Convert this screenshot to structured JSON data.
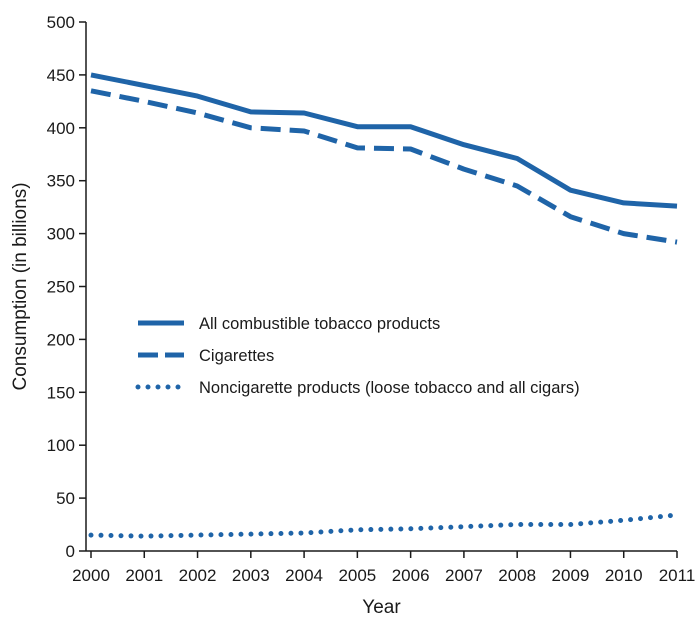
{
  "chart_data": {
    "type": "line",
    "xlabel": "Year",
    "ylabel": "Consumption (in billions)",
    "ylim": [
      0,
      500
    ],
    "yticks": [
      0,
      50,
      100,
      150,
      200,
      250,
      300,
      350,
      400,
      450,
      500
    ],
    "x": [
      "2000",
      "2001",
      "2002",
      "2003",
      "2004",
      "2005",
      "2006",
      "2007",
      "2008",
      "2009",
      "2010",
      "2011"
    ],
    "grid": false,
    "legend_position": "middle-left",
    "line_color": "#1f64a8",
    "series": [
      {
        "name": "All combustible tobacco products",
        "style": "solid",
        "values": [
          450,
          440,
          430,
          415,
          414,
          401,
          401,
          384,
          371,
          341,
          329,
          326
        ]
      },
      {
        "name": "Cigarettes",
        "style": "dashed",
        "values": [
          435,
          425,
          414,
          400,
          397,
          381,
          380,
          361,
          345,
          316,
          300,
          292
        ]
      },
      {
        "name": "Noncigarette products (loose tobacco and all cigars)",
        "style": "dotted",
        "values": [
          15,
          14,
          15,
          16,
          17,
          20,
          21,
          23,
          25,
          25,
          29,
          34
        ]
      }
    ]
  }
}
